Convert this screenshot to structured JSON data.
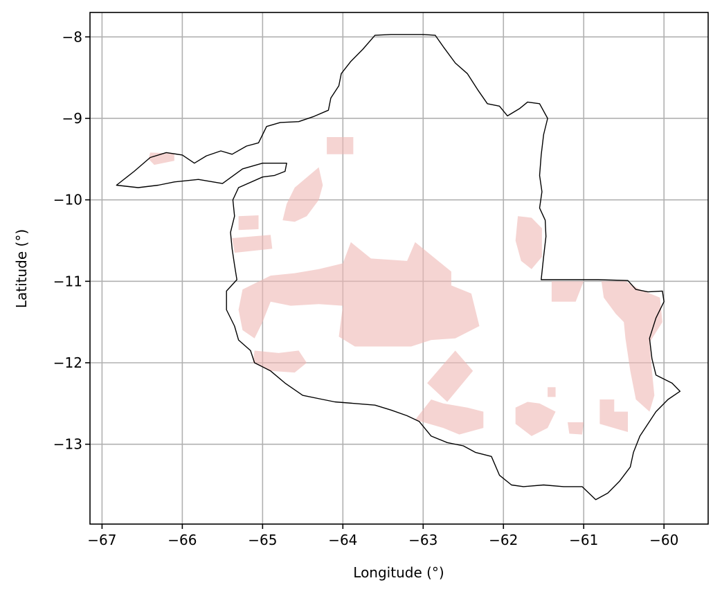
{
  "chart_data": {
    "type": "map",
    "xlabel": "Longitude (°)",
    "ylabel": "Latitude (°)",
    "xlim": [
      -67.15,
      -59.45
    ],
    "ylim": [
      -13.98,
      -7.7
    ],
    "xticks": [
      -67,
      -66,
      -65,
      -64,
      -63,
      -62,
      -61,
      -60
    ],
    "yticks": [
      -8,
      -9,
      -10,
      -11,
      -12,
      -13
    ],
    "xtick_labels": [
      "−67",
      "−66",
      "−65",
      "−64",
      "−63",
      "−62",
      "−61",
      "−60"
    ],
    "ytick_labels": [
      "−8",
      "−9",
      "−10",
      "−11",
      "−12",
      "−13"
    ],
    "grid": true,
    "colors": {
      "region_fill": "#eeb8b4",
      "border": "#000000",
      "grid": "#b0b0b0"
    },
    "boundary": [
      [
        -66.82,
        -9.82
      ],
      [
        -66.6,
        -9.65
      ],
      [
        -66.4,
        -9.48
      ],
      [
        -66.2,
        -9.42
      ],
      [
        -66.0,
        -9.45
      ],
      [
        -65.85,
        -9.55
      ],
      [
        -65.7,
        -9.46
      ],
      [
        -65.52,
        -9.4
      ],
      [
        -65.38,
        -9.44
      ],
      [
        -65.2,
        -9.34
      ],
      [
        -65.05,
        -9.3
      ],
      [
        -64.95,
        -9.1
      ],
      [
        -64.78,
        -9.05
      ],
      [
        -64.55,
        -9.04
      ],
      [
        -64.37,
        -8.98
      ],
      [
        -64.18,
        -8.9
      ],
      [
        -64.15,
        -8.75
      ],
      [
        -64.05,
        -8.6
      ],
      [
        -64.02,
        -8.45
      ],
      [
        -63.9,
        -8.3
      ],
      [
        -63.75,
        -8.15
      ],
      [
        -63.6,
        -7.98
      ],
      [
        -63.4,
        -7.97
      ],
      [
        -63.0,
        -7.97
      ],
      [
        -62.85,
        -7.98
      ],
      [
        -62.75,
        -8.12
      ],
      [
        -62.6,
        -8.32
      ],
      [
        -62.45,
        -8.45
      ],
      [
        -62.32,
        -8.65
      ],
      [
        -62.2,
        -8.82
      ],
      [
        -62.05,
        -8.85
      ],
      [
        -61.95,
        -8.97
      ],
      [
        -61.8,
        -8.88
      ],
      [
        -61.7,
        -8.8
      ],
      [
        -61.55,
        -8.82
      ],
      [
        -61.45,
        -9.0
      ],
      [
        -61.5,
        -9.2
      ],
      [
        -61.53,
        -9.45
      ],
      [
        -61.55,
        -9.7
      ],
      [
        -61.52,
        -9.9
      ],
      [
        -61.55,
        -10.1
      ],
      [
        -61.48,
        -10.25
      ],
      [
        -61.47,
        -10.45
      ],
      [
        -61.5,
        -10.7
      ],
      [
        -61.53,
        -10.98
      ],
      [
        -61.2,
        -10.98
      ],
      [
        -60.82,
        -10.98
      ],
      [
        -60.45,
        -10.99
      ],
      [
        -60.35,
        -11.1
      ],
      [
        -60.2,
        -11.13
      ],
      [
        -60.02,
        -11.12
      ],
      [
        -60.0,
        -11.25
      ],
      [
        -60.1,
        -11.45
      ],
      [
        -60.18,
        -11.7
      ],
      [
        -60.15,
        -11.95
      ],
      [
        -60.1,
        -12.15
      ],
      [
        -59.9,
        -12.25
      ],
      [
        -59.8,
        -12.35
      ],
      [
        -59.95,
        -12.45
      ],
      [
        -60.1,
        -12.6
      ],
      [
        -60.2,
        -12.75
      ],
      [
        -60.3,
        -12.9
      ],
      [
        -60.38,
        -13.1
      ],
      [
        -60.42,
        -13.28
      ],
      [
        -60.55,
        -13.45
      ],
      [
        -60.7,
        -13.6
      ],
      [
        -60.85,
        -13.68
      ],
      [
        -61.02,
        -13.52
      ],
      [
        -61.25,
        -13.52
      ],
      [
        -61.5,
        -13.5
      ],
      [
        -61.75,
        -13.52
      ],
      [
        -61.9,
        -13.5
      ],
      [
        -62.05,
        -13.38
      ],
      [
        -62.15,
        -13.15
      ],
      [
        -62.35,
        -13.1
      ],
      [
        -62.5,
        -13.02
      ],
      [
        -62.7,
        -12.98
      ],
      [
        -62.9,
        -12.9
      ],
      [
        -63.05,
        -12.72
      ],
      [
        -63.2,
        -12.65
      ],
      [
        -63.4,
        -12.58
      ],
      [
        -63.6,
        -12.52
      ],
      [
        -63.85,
        -12.5
      ],
      [
        -64.1,
        -12.48
      ],
      [
        -64.25,
        -12.45
      ],
      [
        -64.5,
        -12.4
      ],
      [
        -64.72,
        -12.25
      ],
      [
        -64.9,
        -12.1
      ],
      [
        -65.1,
        -12.0
      ],
      [
        -65.15,
        -11.85
      ],
      [
        -65.3,
        -11.72
      ],
      [
        -65.35,
        -11.55
      ],
      [
        -65.45,
        -11.35
      ],
      [
        -65.45,
        -11.12
      ],
      [
        -65.32,
        -10.98
      ],
      [
        -65.35,
        -10.8
      ],
      [
        -65.38,
        -10.6
      ],
      [
        -65.4,
        -10.4
      ],
      [
        -65.35,
        -10.2
      ],
      [
        -65.37,
        -10.0
      ],
      [
        -65.3,
        -9.85
      ],
      [
        -65.0,
        -9.72
      ],
      [
        -64.85,
        -9.7
      ],
      [
        -64.72,
        -9.65
      ],
      [
        -64.7,
        -9.55
      ],
      [
        -65.0,
        -9.55
      ],
      [
        -65.25,
        -9.62
      ],
      [
        -65.5,
        -9.8
      ],
      [
        -65.8,
        -9.75
      ],
      [
        -66.1,
        -9.78
      ],
      [
        -66.3,
        -9.82
      ],
      [
        -66.55,
        -9.85
      ],
      [
        -66.82,
        -9.82
      ]
    ],
    "regions": [
      [
        [
          -66.4,
          -9.42
        ],
        [
          -66.1,
          -9.43
        ],
        [
          -66.1,
          -9.52
        ],
        [
          -66.35,
          -9.57
        ],
        [
          -66.42,
          -9.5
        ]
      ],
      [
        [
          -64.2,
          -9.23
        ],
        [
          -63.87,
          -9.23
        ],
        [
          -63.87,
          -9.44
        ],
        [
          -64.2,
          -9.44
        ]
      ],
      [
        [
          -64.3,
          -9.6
        ],
        [
          -64.25,
          -9.82
        ],
        [
          -64.3,
          -10.0
        ],
        [
          -64.45,
          -10.2
        ],
        [
          -64.6,
          -10.27
        ],
        [
          -64.75,
          -10.25
        ],
        [
          -64.7,
          -10.05
        ],
        [
          -64.6,
          -9.85
        ]
      ],
      [
        [
          -65.3,
          -10.2
        ],
        [
          -65.05,
          -10.19
        ],
        [
          -65.05,
          -10.36
        ],
        [
          -65.3,
          -10.37
        ]
      ],
      [
        [
          -65.38,
          -10.47
        ],
        [
          -64.9,
          -10.43
        ],
        [
          -64.88,
          -10.6
        ],
        [
          -65.35,
          -10.65
        ]
      ],
      [
        [
          -63.9,
          -10.52
        ],
        [
          -63.65,
          -10.72
        ],
        [
          -63.2,
          -10.75
        ],
        [
          -63.1,
          -10.52
        ],
        [
          -62.85,
          -10.72
        ],
        [
          -62.65,
          -10.88
        ],
        [
          -62.65,
          -11.05
        ],
        [
          -62.4,
          -11.15
        ],
        [
          -62.3,
          -11.55
        ],
        [
          -62.6,
          -11.7
        ],
        [
          -62.9,
          -11.72
        ],
        [
          -63.15,
          -11.8
        ],
        [
          -63.5,
          -11.8
        ],
        [
          -63.85,
          -11.8
        ],
        [
          -64.05,
          -11.68
        ],
        [
          -64.0,
          -11.3
        ],
        [
          -64.3,
          -11.28
        ],
        [
          -64.65,
          -11.3
        ],
        [
          -64.9,
          -11.25
        ],
        [
          -65.0,
          -11.5
        ],
        [
          -65.1,
          -11.7
        ],
        [
          -65.25,
          -11.6
        ],
        [
          -65.3,
          -11.35
        ],
        [
          -65.25,
          -11.1
        ],
        [
          -64.9,
          -10.93
        ],
        [
          -64.6,
          -10.9
        ],
        [
          -64.3,
          -10.85
        ],
        [
          -64.0,
          -10.78
        ]
      ],
      [
        [
          -65.1,
          -11.85
        ],
        [
          -64.8,
          -11.88
        ],
        [
          -64.55,
          -11.85
        ],
        [
          -64.45,
          -12.0
        ],
        [
          -64.6,
          -12.12
        ],
        [
          -64.9,
          -12.1
        ],
        [
          -65.12,
          -12.0
        ]
      ],
      [
        [
          -61.82,
          -10.2
        ],
        [
          -61.65,
          -10.22
        ],
        [
          -61.52,
          -10.35
        ],
        [
          -61.52,
          -10.7
        ],
        [
          -61.65,
          -10.85
        ],
        [
          -61.78,
          -10.75
        ],
        [
          -61.85,
          -10.5
        ]
      ],
      [
        [
          -61.4,
          -11.0
        ],
        [
          -61.0,
          -11.0
        ],
        [
          -61.1,
          -11.25
        ],
        [
          -61.4,
          -11.25
        ]
      ],
      [
        [
          -60.78,
          -11.0
        ],
        [
          -60.48,
          -11.0
        ],
        [
          -60.3,
          -11.1
        ],
        [
          -60.05,
          -11.2
        ],
        [
          -60.02,
          -11.5
        ],
        [
          -60.18,
          -11.75
        ],
        [
          -60.15,
          -12.1
        ],
        [
          -60.12,
          -12.4
        ],
        [
          -60.18,
          -12.6
        ],
        [
          -60.35,
          -12.45
        ],
        [
          -60.42,
          -12.1
        ],
        [
          -60.48,
          -11.7
        ],
        [
          -60.5,
          -11.5
        ],
        [
          -60.6,
          -11.4
        ],
        [
          -60.75,
          -11.2
        ]
      ],
      [
        [
          -62.6,
          -11.85
        ],
        [
          -62.95,
          -12.25
        ],
        [
          -62.7,
          -12.48
        ],
        [
          -62.38,
          -12.1
        ]
      ],
      [
        [
          -62.75,
          -12.5
        ],
        [
          -62.45,
          -12.55
        ],
        [
          -62.25,
          -12.6
        ],
        [
          -62.25,
          -12.8
        ],
        [
          -62.55,
          -12.88
        ],
        [
          -62.75,
          -12.8
        ],
        [
          -63.1,
          -12.7
        ],
        [
          -62.9,
          -12.45
        ]
      ],
      [
        [
          -61.7,
          -12.48
        ],
        [
          -61.55,
          -12.5
        ],
        [
          -61.35,
          -12.6
        ],
        [
          -61.45,
          -12.8
        ],
        [
          -61.65,
          -12.9
        ],
        [
          -61.85,
          -12.75
        ],
        [
          -61.85,
          -12.55
        ]
      ],
      [
        [
          -61.45,
          -12.3
        ],
        [
          -61.35,
          -12.3
        ],
        [
          -61.35,
          -12.42
        ],
        [
          -61.45,
          -12.42
        ]
      ],
      [
        [
          -61.2,
          -12.73
        ],
        [
          -61.0,
          -12.73
        ],
        [
          -61.02,
          -12.88
        ],
        [
          -61.18,
          -12.87
        ]
      ],
      [
        [
          -60.8,
          -12.45
        ],
        [
          -60.62,
          -12.45
        ],
        [
          -60.62,
          -12.6
        ],
        [
          -60.45,
          -12.6
        ],
        [
          -60.45,
          -12.85
        ],
        [
          -60.8,
          -12.75
        ]
      ]
    ]
  }
}
